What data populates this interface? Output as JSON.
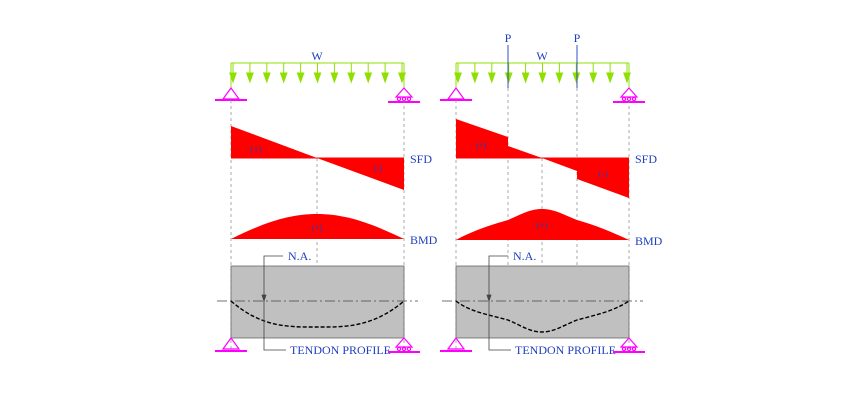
{
  "labels": {
    "udl": "W",
    "point_load": "P",
    "sfd": "SFD",
    "bmd": "BMD",
    "neutral_axis": "N.A.",
    "tendon": "TENDON PROFILE",
    "sign_plus": "(+)",
    "sign_minus": "(-)"
  },
  "colors": {
    "load": "#8fe000",
    "support": "#ff00ff",
    "diagram_fill": "#ff0000",
    "beam_fill": "#c0c0c0",
    "text": "#1f3fbf"
  },
  "panels": [
    {
      "name": "uniform-load-case",
      "point_loads": false
    },
    {
      "name": "uniform-plus-point-loads-case",
      "point_loads": true
    }
  ]
}
